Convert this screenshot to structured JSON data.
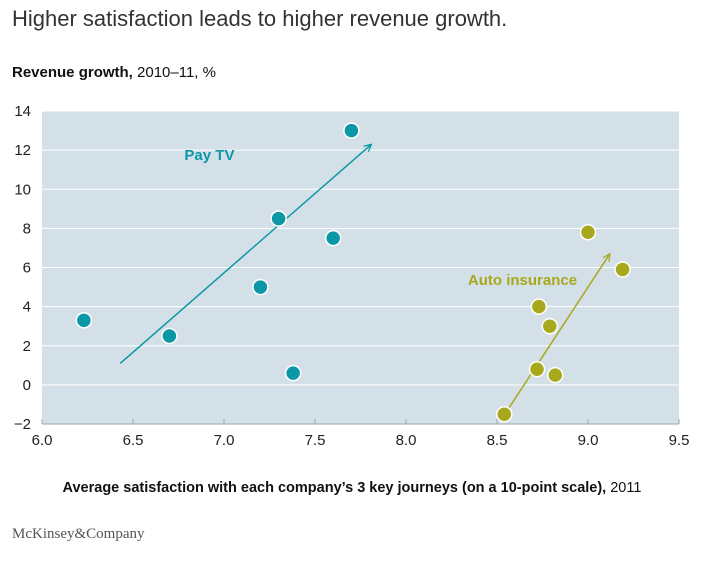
{
  "title": "Higher satisfaction leads to higher revenue growth.",
  "brand": "McKinsey&Company",
  "chart_data": {
    "type": "scatter",
    "title": "Higher satisfaction leads to higher revenue growth.",
    "ylabel_bold": "Revenue growth,",
    "ylabel_rest": " 2010–11, %",
    "xlabel_bold": "Average satisfaction with each company’s 3 key journeys (on a 10-point scale),",
    "xlabel_rest": " 2011",
    "xlim": [
      6.0,
      9.5
    ],
    "ylim": [
      -2,
      14
    ],
    "x_ticks": [
      "6.0",
      "6.5",
      "7.0",
      "7.5",
      "8.0",
      "8.5",
      "9.0",
      "9.5"
    ],
    "y_ticks": [
      "14",
      "12",
      "10",
      "8",
      "6",
      "4",
      "2",
      "0",
      "−2"
    ],
    "x_tick_values": [
      6.0,
      6.5,
      7.0,
      7.5,
      8.0,
      8.5,
      9.0,
      9.5
    ],
    "y_tick_values": [
      14,
      12,
      10,
      8,
      6,
      4,
      2,
      0,
      -2
    ],
    "series": [
      {
        "name": "Pay TV",
        "color": "#0a97a6",
        "x": [
          6.23,
          6.7,
          7.2,
          7.3,
          7.38,
          7.6,
          7.7
        ],
        "y": [
          3.3,
          2.5,
          5.0,
          8.5,
          0.6,
          7.5,
          13.0
        ],
        "trend": {
          "x": [
            6.43,
            7.81
          ],
          "y": [
            1.1,
            12.3
          ]
        }
      },
      {
        "name": "Auto insurance",
        "color": "#a8a81c",
        "x": [
          8.54,
          8.72,
          8.73,
          8.79,
          8.82,
          9.0,
          9.19
        ],
        "y": [
          -1.5,
          0.8,
          4.0,
          3.0,
          0.5,
          7.8,
          5.9
        ],
        "trend": {
          "x": [
            8.55,
            9.12
          ],
          "y": [
            -1.4,
            6.7
          ]
        }
      }
    ],
    "background_color": "#d3e0e7"
  }
}
